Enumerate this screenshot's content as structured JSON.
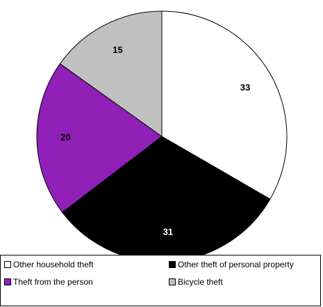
{
  "chart_data": {
    "type": "pie",
    "categories": [
      "Other household theft",
      "Other theft of personal property",
      "Theft from the person",
      "Bicycle theft"
    ],
    "values": [
      33,
      31,
      20,
      15
    ],
    "colors": [
      "#ffffff",
      "#000000",
      "#9020b8",
      "#c0c0c0"
    ],
    "label_colors": [
      "#000000",
      "#ffffff",
      "#000000",
      "#000000"
    ],
    "start_angle_deg": 0,
    "direction": "clockwise",
    "legend_position": "bottom",
    "title": "",
    "xlabel": "",
    "ylabel": ""
  },
  "legend": {
    "items": [
      {
        "label": "Other household theft"
      },
      {
        "label": "Other theft of personal property"
      },
      {
        "label": "Theft from the person"
      },
      {
        "label": "Bicycle theft"
      }
    ]
  }
}
